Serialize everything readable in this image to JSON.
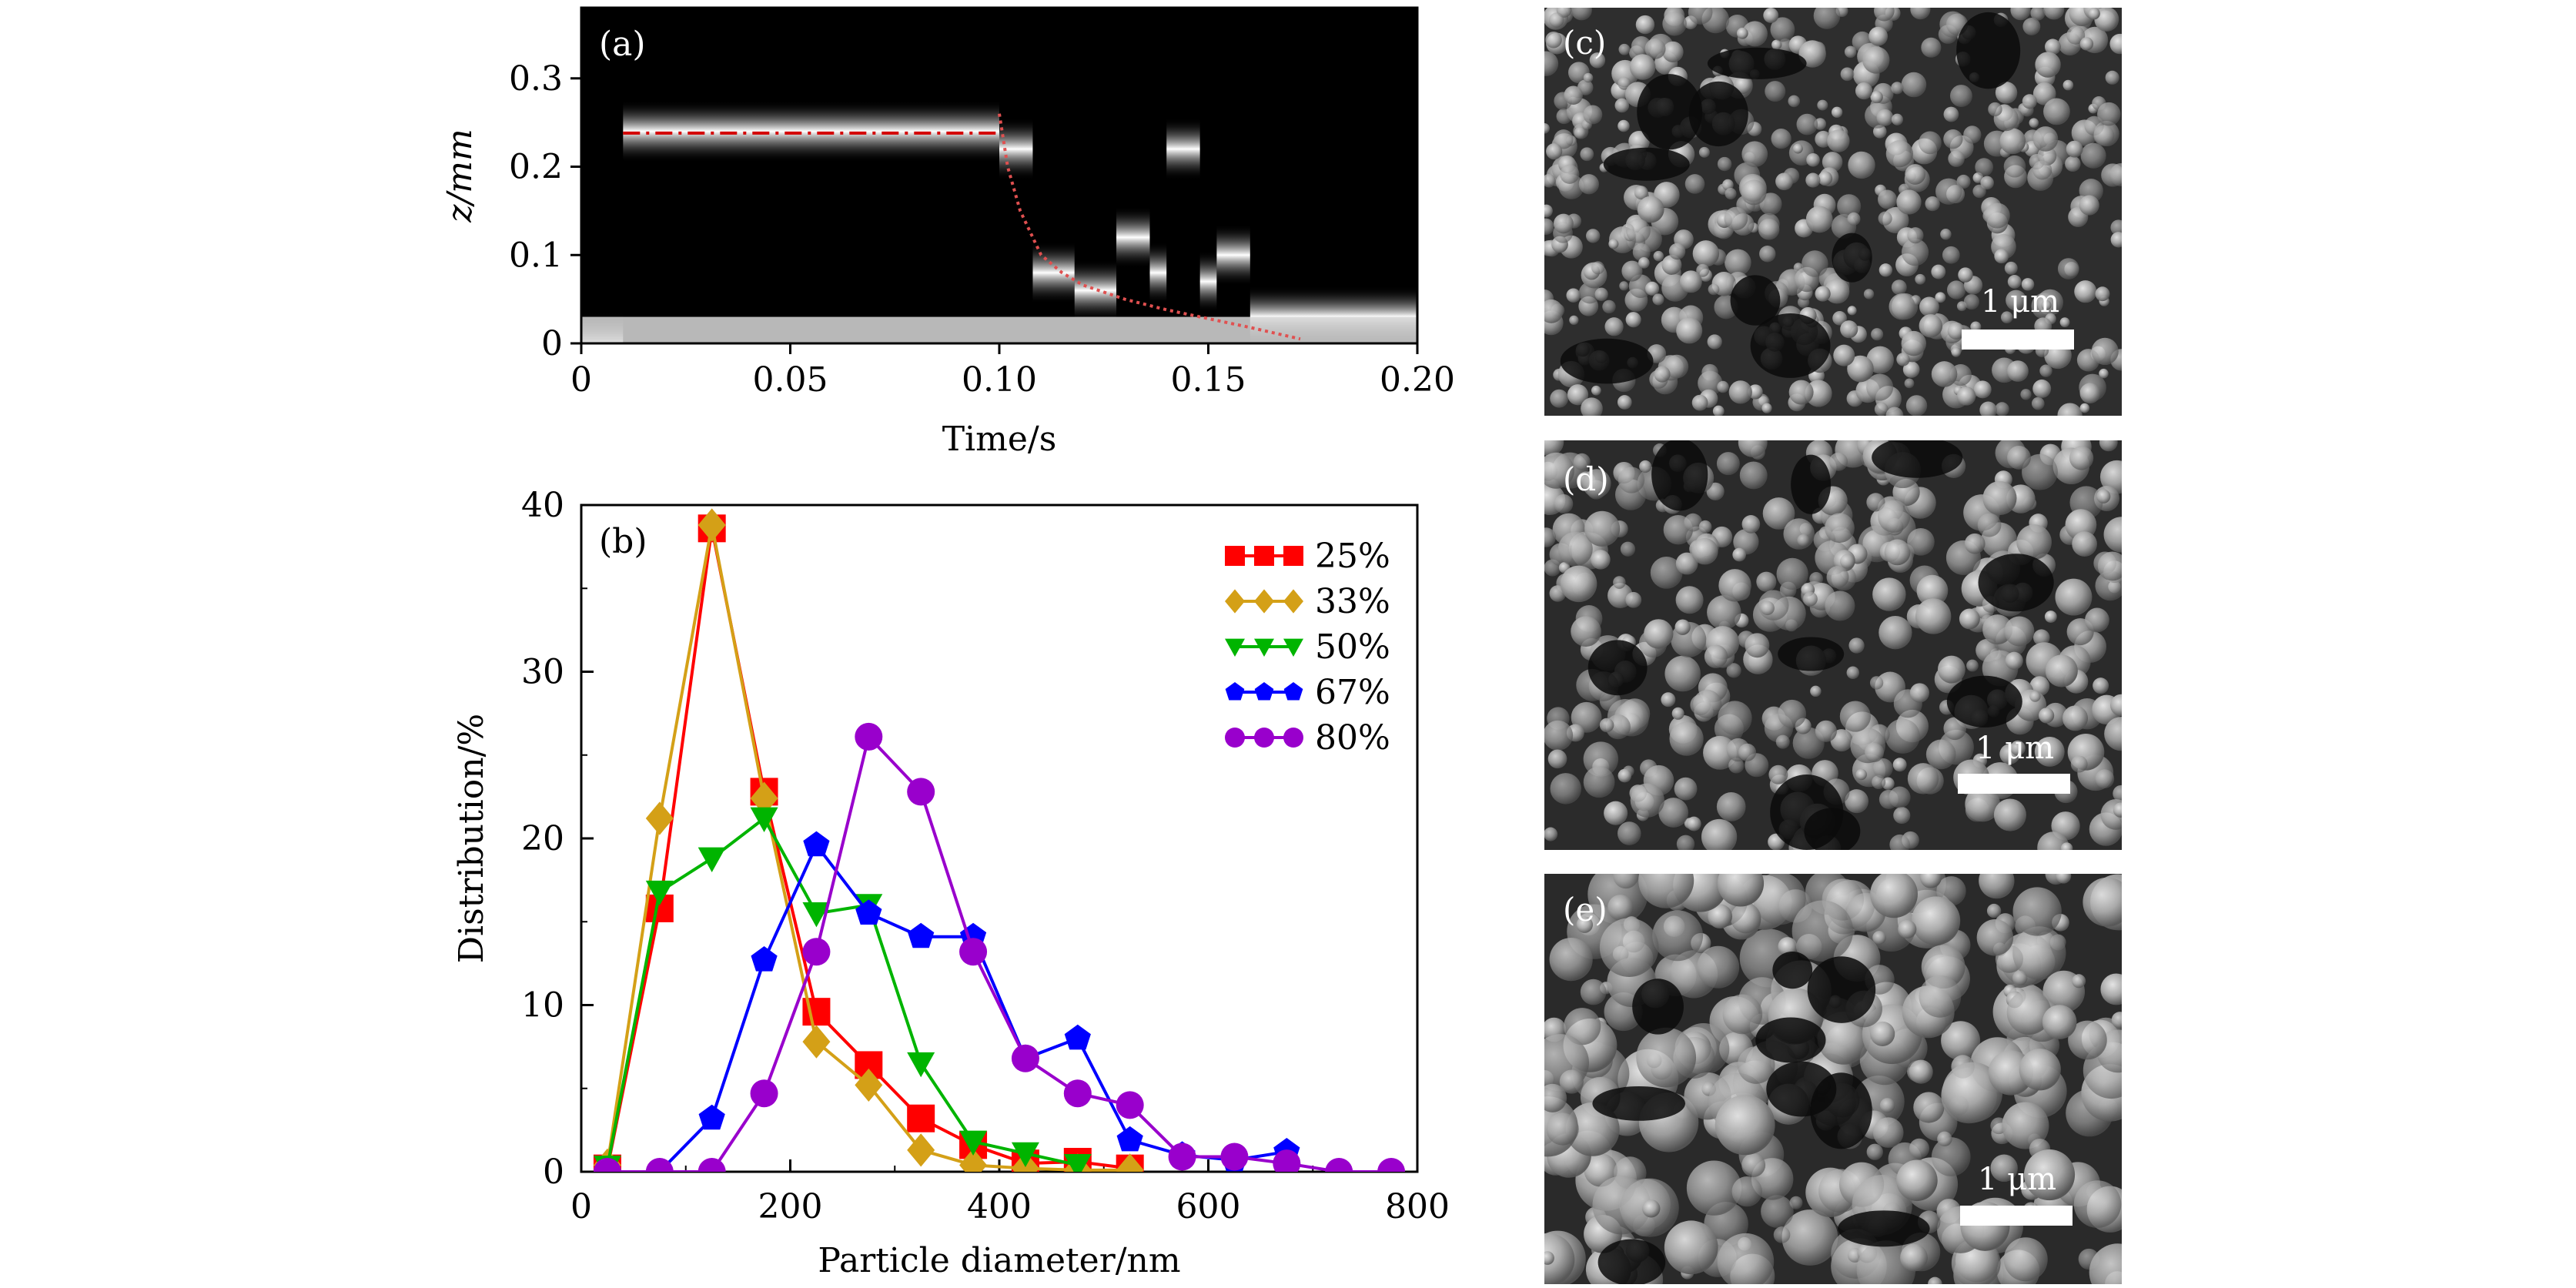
{
  "chart_data": [
    {
      "panel": "(a)",
      "type": "heatmap",
      "title": "",
      "xlabel": "Time/s",
      "ylabel": "z/mm",
      "xlim": [
        0,
        0.2
      ],
      "ylim": [
        0,
        0.38
      ],
      "xticks": [
        "0",
        "0.05",
        "0.10",
        "0.15",
        "0.20"
      ],
      "yticks": [
        "0",
        "0.1",
        "0.2",
        "0.3"
      ],
      "columns": [
        {
          "t0": 0.0,
          "t1": 0.01,
          "z": 0.0
        },
        {
          "t0": 0.01,
          "t1": 0.1,
          "z": 0.24
        },
        {
          "t0": 0.1,
          "t1": 0.108,
          "z": 0.22
        },
        {
          "t0": 0.108,
          "t1": 0.118,
          "z": 0.08
        },
        {
          "t0": 0.118,
          "t1": 0.128,
          "z": 0.06
        },
        {
          "t0": 0.128,
          "t1": 0.136,
          "z": 0.12
        },
        {
          "t0": 0.136,
          "t1": 0.14,
          "z": 0.08
        },
        {
          "t0": 0.14,
          "t1": 0.148,
          "z": 0.22
        },
        {
          "t0": 0.148,
          "t1": 0.152,
          "z": 0.07
        },
        {
          "t0": 0.152,
          "t1": 0.16,
          "z": 0.1
        },
        {
          "t0": 0.16,
          "t1": 0.2,
          "z": 0.03
        }
      ],
      "lines": [
        {
          "style": "dash-dot",
          "color": "#d40000",
          "x": [
            0.01,
            0.1
          ],
          "y": [
            0.238,
            0.238
          ]
        },
        {
          "style": "dotted",
          "color": "#e05050",
          "x": [
            0.1,
            0.102,
            0.105,
            0.11,
            0.115,
            0.12,
            0.13,
            0.14,
            0.15,
            0.16,
            0.172
          ],
          "y": [
            0.26,
            0.2,
            0.15,
            0.1,
            0.08,
            0.066,
            0.05,
            0.038,
            0.028,
            0.018,
            0.005
          ]
        }
      ]
    },
    {
      "panel": "(b)",
      "type": "line",
      "title": "",
      "xlabel": "Particle diameter/nm",
      "ylabel": "Distribution/%",
      "xlim": [
        0,
        800
      ],
      "ylim": [
        0,
        40
      ],
      "xticks": [
        "0",
        "200",
        "400",
        "600",
        "800"
      ],
      "yticks": [
        "0",
        "10",
        "20",
        "30",
        "40"
      ],
      "legend": "top-right",
      "series": [
        {
          "name": "25%",
          "color": "#ff0000",
          "marker": "square",
          "x": [
            25,
            75,
            125,
            175,
            225,
            275,
            325,
            375,
            425,
            475,
            525
          ],
          "values": [
            0.2,
            15.8,
            38.6,
            22.8,
            9.6,
            6.4,
            3.2,
            1.6,
            0.5,
            0.6,
            0.2
          ]
        },
        {
          "name": "33%",
          "color": "#d4a017",
          "marker": "diamond",
          "x": [
            25,
            75,
            125,
            175,
            225,
            275,
            325,
            375,
            425,
            475,
            525
          ],
          "values": [
            0.4,
            21.2,
            38.8,
            22.4,
            7.8,
            5.2,
            1.3,
            0.4,
            0.2,
            0.1,
            0.1
          ]
        },
        {
          "name": "50%",
          "color": "#00b400",
          "marker": "triangle-down",
          "x": [
            25,
            75,
            125,
            175,
            225,
            275,
            325,
            375,
            425,
            475
          ],
          "values": [
            0.3,
            16.8,
            18.8,
            21.2,
            15.5,
            16.0,
            6.5,
            1.8,
            1.1,
            0.4
          ]
        },
        {
          "name": "67%",
          "color": "#0000ff",
          "marker": "pentagon",
          "x": [
            75,
            125,
            175,
            225,
            275,
            325,
            375,
            425,
            475,
            525,
            575,
            625,
            675
          ],
          "values": [
            0.0,
            3.2,
            12.7,
            19.6,
            15.5,
            14.1,
            14.1,
            6.8,
            8.0,
            1.9,
            1.0,
            0.7,
            1.2
          ]
        },
        {
          "name": "80%",
          "color": "#9900cc",
          "marker": "circle",
          "x": [
            25,
            75,
            125,
            175,
            225,
            275,
            325,
            375,
            425,
            475,
            525,
            575,
            625,
            675,
            725,
            775
          ],
          "values": [
            0.0,
            0.0,
            0.0,
            4.7,
            13.2,
            26.1,
            22.8,
            13.2,
            6.8,
            4.7,
            4.0,
            0.9,
            0.9,
            0.5,
            0.0,
            0.0
          ]
        }
      ]
    }
  ],
  "images": [
    {
      "label": "(c)",
      "scalebar": "1 μm"
    },
    {
      "label": "(d)",
      "scalebar": "1 μm"
    },
    {
      "label": "(e)",
      "scalebar": "1 μm"
    }
  ]
}
